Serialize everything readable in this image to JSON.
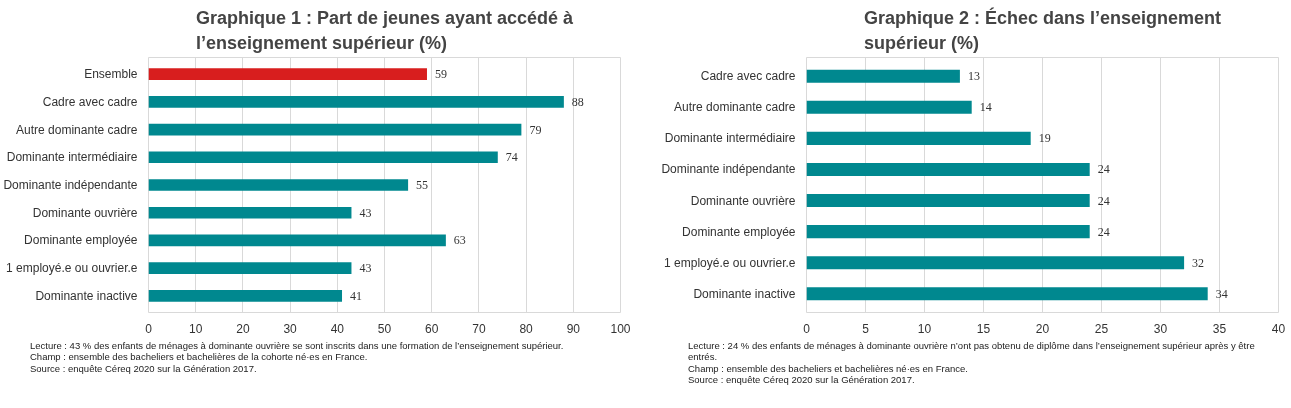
{
  "chart_data": [
    {
      "type": "bar",
      "orientation": "horizontal",
      "title": "Graphique 1 : Part de jeunes ayant accédé à l’enseignement supérieur (%)",
      "categories": [
        "Ensemble",
        "Cadre avec cadre",
        "Autre dominante cadre",
        "Dominante intermédiaire",
        "Dominante indépendante",
        "Dominante ouvrière",
        "Dominante employée",
        "1 employé.e ou ouvrier.e",
        "Dominante inactive"
      ],
      "values": [
        59,
        88,
        79,
        74,
        55,
        43,
        63,
        43,
        41
      ],
      "colors": [
        "#d81e1e",
        "#00888f",
        "#00888f",
        "#00888f",
        "#00888f",
        "#00888f",
        "#00888f",
        "#00888f",
        "#00888f"
      ],
      "xlim": [
        0,
        100
      ],
      "xticks": [
        0,
        10,
        20,
        30,
        40,
        50,
        60,
        70,
        80,
        90,
        100
      ],
      "grid": "x",
      "data_labels": true,
      "annotations": [
        "Lecture : 43 % des enfants de ménages à dominante ouvrière se sont inscrits dans une formation de l’enseignement supérieur.",
        "Champ : ensemble des bacheliers et bachelières de la cohorte né·es en France.",
        "Source : enquête Céreq 2020 sur la Génération 2017."
      ]
    },
    {
      "type": "bar",
      "orientation": "horizontal",
      "title": "Graphique 2 : Échec dans l’enseignement supérieur (%)",
      "categories": [
        "Cadre avec cadre",
        "Autre dominante cadre",
        "Dominante intermédiaire",
        "Dominante indépendante",
        "Dominante ouvrière",
        "Dominante employée",
        "1 employé.e ou ouvrier.e",
        "Dominante inactive"
      ],
      "values": [
        13,
        14,
        19,
        24,
        24,
        24,
        32,
        34
      ],
      "colors": [
        "#00888f",
        "#00888f",
        "#00888f",
        "#00888f",
        "#00888f",
        "#00888f",
        "#00888f",
        "#00888f"
      ],
      "xlim": [
        0,
        40
      ],
      "xticks": [
        0,
        5,
        10,
        15,
        20,
        25,
        30,
        35,
        40
      ],
      "grid": "x",
      "data_labels": true,
      "annotations": [
        "Lecture : 24 % des enfants de ménages à dominante ouvrière n’ont pas obtenu de diplôme dans l’enseignement supérieur après y être entrés.",
        "Champ : ensemble des bacheliers et bachelières né·es en France.",
        "Source : enquête Céreq 2020 sur la Génération 2017."
      ]
    }
  ]
}
